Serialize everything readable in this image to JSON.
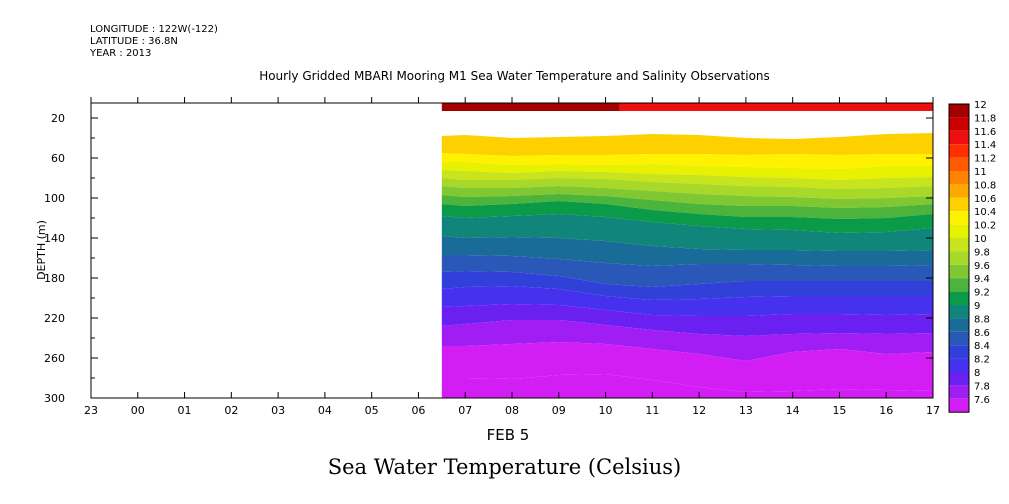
{
  "header": {
    "longitude": "LONGITUDE : 122W(-122)",
    "latitude": "LATITUDE : 36.8N",
    "year": "YEAR : 2013"
  },
  "chart_data": {
    "type": "heatmap",
    "title": "Hourly Gridded MBARI Mooring M1 Sea Water Temperature and Salinity Observations",
    "xlabel": "Sea Water Temperature (Celsius)",
    "x_date_label": "FEB  5",
    "ylabel": "DEPTH (m)",
    "x_ticks": [
      "23",
      "00",
      "01",
      "02",
      "03",
      "04",
      "05",
      "06",
      "07",
      "08",
      "09",
      "10",
      "11",
      "12",
      "13",
      "14",
      "15",
      "16",
      "17"
    ],
    "y_ticks": [
      20,
      60,
      100,
      140,
      180,
      220,
      260,
      300
    ],
    "ylim": [
      300,
      5
    ],
    "y_inverted": true,
    "data_start_hour": 6.5,
    "colorbar": {
      "levels": [
        "12",
        "11.8",
        "11.6",
        "11.4",
        "11.2",
        "11",
        "10.8",
        "10.6",
        "10.4",
        "10.2",
        "10",
        "9.8",
        "9.6",
        "9.4",
        "9.2",
        "9",
        "8.8",
        "8.6",
        "8.4",
        "8.2",
        "8",
        "7.8",
        "7.6"
      ],
      "colors": [
        "#a40000",
        "#cc0000",
        "#ee1010",
        "#ff3000",
        "#ff5a00",
        "#ff8200",
        "#ffa800",
        "#ffd000",
        "#fff200",
        "#e8f200",
        "#c8e41c",
        "#a8d828",
        "#80c832",
        "#4cb43a",
        "#0a9a48",
        "#10867a",
        "#1a6c98",
        "#2a58b8",
        "#3040d8",
        "#4632ee",
        "#6a20f0",
        "#a01ef4",
        "#d21ef4"
      ]
    },
    "surface_bins": [
      {
        "hours": [
          6.5,
          10.3
        ],
        "temp": 11.9
      },
      {
        "hours": [
          10.3,
          17
        ],
        "temp": 11.7
      }
    ],
    "contour_hours": [
      6.5,
      7,
      8,
      9,
      10,
      11,
      12,
      13,
      14,
      15,
      16,
      17
    ],
    "isotherms": [
      {
        "temp": 10.6,
        "depth": [
          38,
          37,
          40,
          39,
          38,
          36,
          37,
          40,
          41,
          39,
          36,
          35
        ]
      },
      {
        "temp": 10.4,
        "depth": [
          55,
          56,
          58,
          57,
          57,
          56,
          56,
          57,
          56,
          57,
          56,
          56
        ]
      },
      {
        "temp": 10.2,
        "depth": [
          64,
          64,
          67,
          66,
          67,
          66,
          68,
          69,
          70,
          71,
          68,
          68
        ]
      },
      {
        "temp": 10.0,
        "depth": [
          72,
          73,
          75,
          73,
          74,
          76,
          77,
          79,
          80,
          82,
          80,
          79
        ]
      },
      {
        "temp": 9.8,
        "depth": [
          80,
          82,
          82,
          80,
          81,
          84,
          86,
          88,
          89,
          91,
          90,
          88
        ]
      },
      {
        "temp": 9.6,
        "depth": [
          88,
          90,
          90,
          88,
          90,
          93,
          96,
          98,
          99,
          101,
          100,
          98
        ]
      },
      {
        "temp": 9.4,
        "depth": [
          97,
          99,
          98,
          96,
          98,
          102,
          106,
          108,
          108,
          110,
          109,
          106
        ]
      },
      {
        "temp": 9.2,
        "depth": [
          106,
          108,
          106,
          103,
          106,
          112,
          116,
          119,
          119,
          121,
          120,
          116
        ]
      },
      {
        "temp": 9.0,
        "depth": [
          118,
          120,
          118,
          116,
          119,
          124,
          128,
          131,
          132,
          135,
          134,
          130
        ]
      },
      {
        "temp": 8.8,
        "depth": [
          138,
          140,
          139,
          140,
          143,
          148,
          151,
          152,
          152,
          153,
          153,
          152
        ]
      },
      {
        "temp": 8.6,
        "depth": [
          157,
          157,
          158,
          161,
          165,
          168,
          166,
          166,
          167,
          168,
          168,
          167
        ]
      },
      {
        "temp": 8.4,
        "depth": [
          174,
          173,
          174,
          178,
          186,
          189,
          186,
          183,
          183,
          183,
          183,
          183
        ]
      },
      {
        "temp": 8.2,
        "depth": [
          191,
          189,
          188,
          191,
          198,
          202,
          201,
          199,
          198,
          198,
          198,
          198
        ]
      },
      {
        "temp": 8.0,
        "depth": [
          209,
          208,
          206,
          207,
          212,
          217,
          218,
          218,
          216,
          216,
          217,
          216
        ]
      },
      {
        "temp": 7.8,
        "depth": [
          228,
          226,
          222,
          222,
          227,
          232,
          236,
          238,
          236,
          235,
          236,
          235
        ]
      },
      {
        "temp": 7.6,
        "depth": [
          248,
          248,
          246,
          244,
          246,
          251,
          256,
          263,
          254,
          251,
          256,
          254
        ]
      },
      {
        "temp": 7.4,
        "depth": [
          280,
          280,
          281,
          277,
          276,
          282,
          289,
          294,
          293,
          291,
          292,
          293
        ]
      }
    ]
  }
}
